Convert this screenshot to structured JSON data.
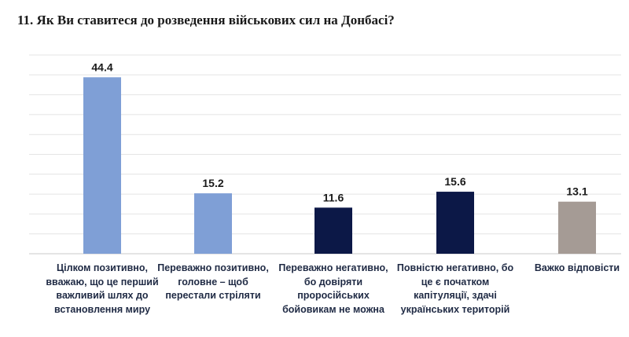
{
  "title": "11. Як Ви ставитеся до розведення військових сил на Донбасі?",
  "chart_data": {
    "type": "bar",
    "title": "11. Як Ви ставитеся до розведення військових сил на Донбасі?",
    "categories": [
      "Цілком позитивно,\nвважаю, що це перший\nважливий  шлях до\nвстановлення миру",
      "Переважно позитивно,\nголовне – щоб\nперестали стріляти",
      "Переважно негативно,\nбо довіряти\nпроросійських\nбойовикам не можна",
      "Повністю негативно, бо\nце є початком\nкапітуляції, здачі\nукраїнських територій",
      "Важко відповісти"
    ],
    "values": [
      44.4,
      15.2,
      11.6,
      15.6,
      13.1
    ],
    "data_labels": [
      "44.4",
      "15.2",
      "11.6",
      "15.6",
      "13.1"
    ],
    "colors": [
      "#7f9fd6",
      "#7f9fd6",
      "#0c1847",
      "#0c1847",
      "#a59b95"
    ],
    "ylim": [
      0,
      50
    ],
    "grid": true,
    "legend": "none"
  }
}
